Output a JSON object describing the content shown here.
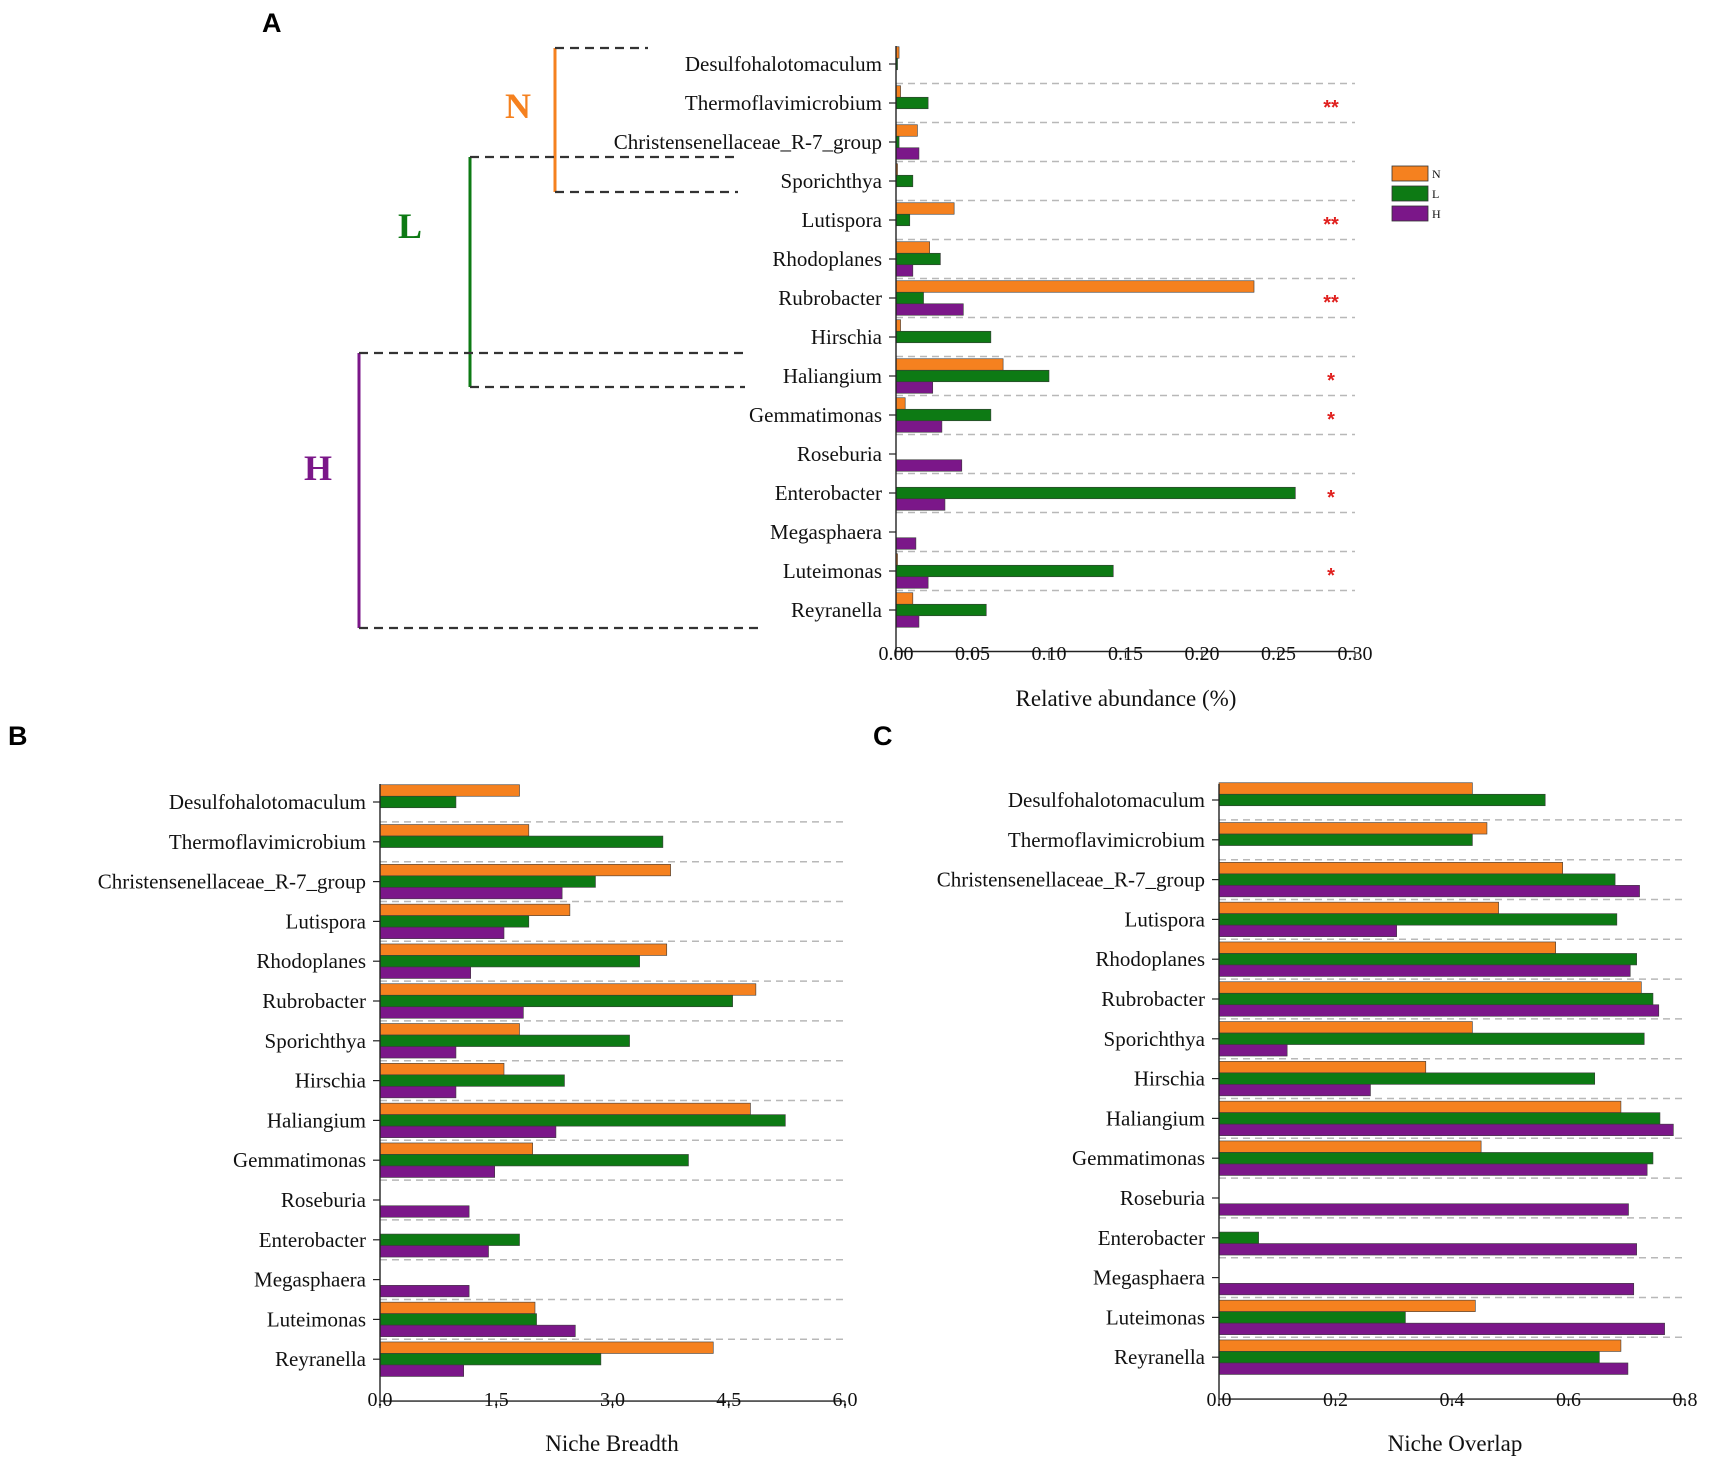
{
  "colors": {
    "N": "#f5811f",
    "L": "#0d7a14",
    "H": "#7b1789",
    "sig": "#e0201e",
    "grid": "#b8b8b8"
  },
  "chart_data": [
    {
      "panel": "A",
      "type": "bar",
      "orientation": "horizontal",
      "xlabel": "Relative abundance (%)",
      "xlim": [
        0,
        0.3
      ],
      "xticks": [
        "0.00",
        "0.05",
        "0.10",
        "0.15",
        "0.20",
        "0.25",
        "0.30"
      ],
      "legend": [
        "N",
        "L",
        "H"
      ],
      "legend_position": "right",
      "categories": [
        "Desulfohalotomaculum",
        "Thermoflavimicrobium",
        "Christensenellaceae_R-7_group",
        "Sporichthya",
        "Lutispora",
        "Rhodoplanes",
        "Rubrobacter",
        "Hirschia",
        "Haliangium",
        "Gemmatimonas",
        "Roseburia",
        "Enterobacter",
        "Megasphaera",
        "Luteimonas",
        "Reyranella"
      ],
      "series": [
        {
          "name": "N",
          "values": [
            0.002,
            0.003,
            0.014,
            0.001,
            0.038,
            0.022,
            0.234,
            0.003,
            0.07,
            0.006,
            0,
            0,
            0,
            0.001,
            0.011
          ]
        },
        {
          "name": "L",
          "values": [
            0.001,
            0.021,
            0.002,
            0.011,
            0.009,
            0.029,
            0.018,
            0.062,
            0.1,
            0.062,
            0,
            0.261,
            0,
            0.142,
            0.059
          ]
        },
        {
          "name": "H",
          "values": [
            0,
            0,
            0.015,
            0,
            0,
            0.011,
            0.044,
            0,
            0.024,
            0.03,
            0.043,
            0.032,
            0.013,
            0.021,
            0.015
          ]
        }
      ],
      "significance": [
        "",
        "**",
        "",
        "",
        "**",
        "",
        "**",
        "",
        "*",
        "*",
        "",
        "*",
        "",
        "*",
        ""
      ],
      "groups": [
        {
          "label": "N",
          "members": [
            "Desulfohalotomaculum",
            "Thermoflavimicrobium",
            "Christensenellaceae_R-7_group",
            "Sporichthya"
          ]
        },
        {
          "label": "L",
          "members": [
            "Sporichthya",
            "Lutispora",
            "Rhodoplanes",
            "Rubrobacter",
            "Hirschia",
            "Haliangium"
          ]
        },
        {
          "label": "H",
          "members": [
            "Hirschia",
            "Haliangium",
            "Gemmatimonas",
            "Roseburia",
            "Enterobacter",
            "Megasphaera",
            "Luteimonas",
            "Reyranella"
          ]
        }
      ]
    },
    {
      "panel": "B",
      "type": "bar",
      "orientation": "horizontal",
      "xlabel": "Niche Breadth",
      "xlim": [
        0,
        6
      ],
      "xticks": [
        "0.0",
        "1.5",
        "3.0",
        "4.5",
        "6.0"
      ],
      "categories": [
        "Desulfohalotomaculum",
        "Thermoflavimicrobium",
        "Christensenellaceae_R-7_group",
        "Lutispora",
        "Rhodoplanes",
        "Rubrobacter",
        "Sporichthya",
        "Hirschia",
        "Haliangium",
        "Gemmatimonas",
        "Roseburia",
        "Enterobacter",
        "Megasphaera",
        "Luteimonas",
        "Reyranella"
      ],
      "series": [
        {
          "name": "N",
          "values": [
            1.8,
            1.92,
            3.75,
            2.45,
            3.7,
            4.85,
            1.8,
            1.6,
            4.78,
            1.97,
            0,
            0,
            0,
            2.0,
            4.3
          ]
        },
        {
          "name": "L",
          "values": [
            0.98,
            3.65,
            2.78,
            1.92,
            3.35,
            4.55,
            3.22,
            2.38,
            5.23,
            3.98,
            0,
            1.8,
            0,
            2.02,
            2.85
          ]
        },
        {
          "name": "H",
          "values": [
            0,
            0,
            2.35,
            1.6,
            1.17,
            1.85,
            0.98,
            0.98,
            2.27,
            1.48,
            1.15,
            1.4,
            1.15,
            2.52,
            1.08
          ]
        }
      ]
    },
    {
      "panel": "C",
      "type": "bar",
      "orientation": "horizontal",
      "xlabel": "Niche Overlap",
      "xlim": [
        0,
        0.8
      ],
      "xticks": [
        "0.0",
        "0.2",
        "0.4",
        "0.6",
        "0.8"
      ],
      "categories": [
        "Desulfohalotomaculum",
        "Thermoflavimicrobium",
        "Christensenellaceae_R-7_group",
        "Lutispora",
        "Rhodoplanes",
        "Rubrobacter",
        "Sporichthya",
        "Hirschia",
        "Haliangium",
        "Gemmatimonas",
        "Roseburia",
        "Enterobacter",
        "Megasphaera",
        "Luteimonas",
        "Reyranella"
      ],
      "series": [
        {
          "name": "N",
          "values": [
            0.435,
            0.46,
            0.59,
            0.48,
            0.578,
            0.725,
            0.435,
            0.355,
            0.69,
            0.45,
            0,
            0,
            0,
            0.44,
            0.69
          ]
        },
        {
          "name": "L",
          "values": [
            0.56,
            0.435,
            0.68,
            0.683,
            0.717,
            0.745,
            0.73,
            0.645,
            0.757,
            0.745,
            0,
            0.068,
            0,
            0.32,
            0.653
          ]
        },
        {
          "name": "H",
          "values": [
            0,
            0,
            0.722,
            0.305,
            0.706,
            0.755,
            0.117,
            0.26,
            0.78,
            0.735,
            0.703,
            0.717,
            0.712,
            0.765,
            0.702
          ]
        }
      ]
    }
  ]
}
